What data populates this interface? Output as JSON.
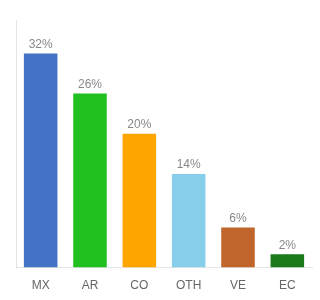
{
  "chart_data": {
    "type": "bar",
    "categories": [
      "MX",
      "AR",
      "CO",
      "OTH",
      "VE",
      "EC"
    ],
    "values": [
      32,
      26,
      20,
      14,
      6,
      2
    ],
    "value_labels": [
      "32%",
      "26%",
      "20%",
      "14%",
      "6%",
      "2%"
    ],
    "colors": [
      "#4472c4",
      "#21c021",
      "#ffa500",
      "#87ceeb",
      "#c0652b",
      "#1a7a1a"
    ],
    "ylim": [
      0,
      37
    ],
    "grid": false,
    "data_labels": true,
    "tick_labels": "x"
  }
}
